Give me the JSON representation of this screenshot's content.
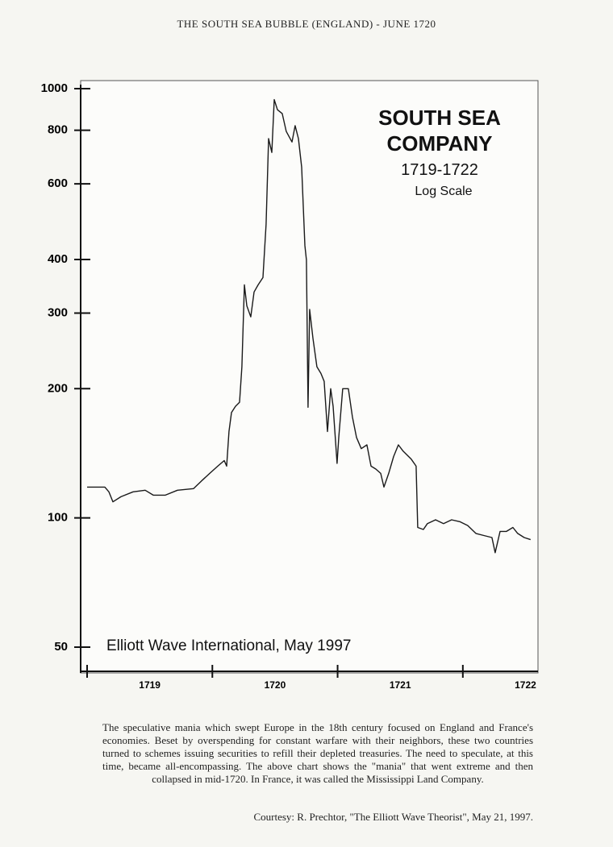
{
  "header": {
    "title": "THE SOUTH SEA BUBBLE (ENGLAND) - JUNE 1720"
  },
  "chart_data": {
    "type": "line",
    "title": "SOUTH SEA COMPANY",
    "subtitle": "1719-1722",
    "annotations": [
      "Log Scale",
      "Elliott Wave International, May 1997"
    ],
    "log_scale": true,
    "color": "#1a1a1a",
    "xlim": [
      1719,
      1722.6
    ],
    "xticks": [
      1719,
      1720,
      1721,
      1722
    ],
    "ylim": [
      50,
      1000
    ],
    "yticks": [
      50,
      100,
      200,
      300,
      400,
      600,
      800,
      1000
    ],
    "x": [
      1719.0,
      1719.142,
      1719.174,
      1719.206,
      1719.27,
      1719.367,
      1719.464,
      1719.528,
      1719.625,
      1719.721,
      1719.85,
      1719.914,
      1719.979,
      1720.043,
      1720.095,
      1720.114,
      1720.133,
      1720.153,
      1720.185,
      1720.217,
      1720.236,
      1720.256,
      1720.275,
      1720.307,
      1720.333,
      1720.365,
      1720.404,
      1720.429,
      1720.449,
      1720.475,
      1720.494,
      1720.52,
      1720.558,
      1720.59,
      1720.636,
      1720.661,
      1720.687,
      1720.713,
      1720.739,
      1720.751,
      1720.764,
      1720.777,
      1720.803,
      1720.835,
      1720.867,
      1720.893,
      1720.919,
      1720.945,
      1720.964,
      1720.996,
      1721.009,
      1721.041,
      1721.086,
      1721.118,
      1721.151,
      1721.189,
      1721.234,
      1721.267,
      1721.305,
      1721.344,
      1721.37,
      1721.408,
      1721.447,
      1721.485,
      1721.524,
      1721.588,
      1721.627,
      1721.64,
      1721.685,
      1721.717,
      1721.782,
      1721.846,
      1721.91,
      1721.975,
      1722.039,
      1722.104,
      1722.168,
      1722.232,
      1722.258,
      1722.297,
      1722.348,
      1722.4,
      1722.438,
      1722.49,
      1722.541
    ],
    "values": [
      118,
      118,
      115,
      109,
      112,
      115,
      116,
      113,
      113,
      116,
      117,
      122,
      127,
      132,
      136,
      132,
      159,
      176,
      182,
      186,
      225,
      349,
      312,
      294,
      336,
      349,
      363,
      483,
      765,
      710,
      943,
      893,
      875,
      795,
      751,
      820,
      765,
      656,
      431,
      399,
      181,
      306,
      262,
      225,
      217,
      208,
      159,
      200,
      182,
      134,
      154,
      200,
      200,
      172,
      154,
      145,
      148,
      132,
      130,
      127,
      118,
      127,
      139,
      148,
      143,
      137,
      132,
      95,
      94,
      97,
      99,
      97,
      99,
      98,
      96,
      92,
      91,
      90,
      83,
      93,
      93,
      95,
      92,
      90,
      89
    ]
  },
  "caption": {
    "paragraph": "The speculative mania which swept Europe in the 18th century focused on England and France's economies. Beset by overspending for constant warfare with their neighbors, these two countries turned to schemes issuing securities to refill their depleted treasuries. The need to speculate, at this time, became all-encompassing. The above chart shows the \"mania\" that went extreme and then collapsed in mid-1720. In France, it was called the Mississippi Land Company.",
    "courtesy": "Courtesy: R. Prechtor, \"The Elliott Wave Theorist\", May 21, 1997."
  }
}
